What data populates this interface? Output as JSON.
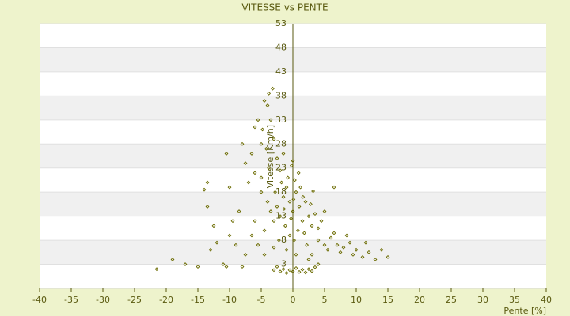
{
  "chart_data": {
    "type": "scatter",
    "title": "VITESSE vs PENTE",
    "x_label": "Pente [%]",
    "y_label": "Vitesse [Km/h]",
    "xlim": [
      -40,
      40
    ],
    "xticks": [
      -40,
      -35,
      -30,
      -25,
      -20,
      -15,
      -10,
      -5,
      0,
      5,
      10,
      15,
      20,
      25,
      30,
      35,
      40
    ],
    "ylim": [
      -2,
      53
    ],
    "yticks": [
      3,
      8,
      13,
      18,
      23,
      28,
      33,
      38,
      43,
      48,
      53
    ],
    "grid": true,
    "series": [
      {
        "color": "#6b6b00",
        "x": [
          -4.5,
          -3.8,
          -3.2,
          -4,
          -5.5,
          -6,
          -4.8,
          -3.5,
          -5,
          -6.5,
          -4.2,
          -3,
          -2.5,
          -7.5,
          -8,
          -10.5,
          -13.5,
          -14,
          -10,
          -7,
          -6,
          -5,
          -3.8,
          -2,
          -1.5,
          -21.5,
          -19,
          -17,
          -15,
          -13,
          -12,
          -11,
          -10,
          -9.5,
          -12.5,
          -13.5,
          -8.5,
          -9,
          -7.5,
          -6.5,
          -6,
          -8,
          -10.5,
          -4.5,
          -5.5,
          -2.5,
          -2,
          -1.5,
          -1,
          -0.5,
          0,
          0.5,
          1,
          1.5,
          2,
          2.5,
          3,
          -3,
          -3.5,
          -4,
          -2.8,
          -1.8,
          -0.8,
          0.3,
          1.2,
          0.8,
          -0.5,
          -1.2,
          0.2,
          1.8,
          2.2,
          -2.2,
          -1,
          0.5,
          -0.3,
          0.1,
          -1.4,
          1.6,
          2.8,
          3.5,
          4,
          4.5,
          -4.5,
          -3,
          0.9,
          -0.2,
          0,
          5,
          6.5,
          -5,
          3.2,
          4,
          5,
          5.5,
          6,
          7,
          7.5,
          8,
          9,
          9.5,
          10,
          11,
          11.5,
          12,
          13,
          14,
          15,
          8.5,
          6.5,
          3,
          2.5,
          -2,
          -1.5,
          -1,
          -0.5,
          0,
          0.5,
          1,
          1.5,
          2,
          2.5,
          3,
          3.5,
          -2.5,
          -3,
          4
        ],
        "y": [
          37,
          38.5,
          39.5,
          36,
          33,
          31.5,
          31,
          33,
          28,
          26,
          27,
          29,
          25,
          24,
          28,
          26,
          20,
          18.5,
          19,
          20,
          22,
          21,
          23,
          22.5,
          26,
          2,
          4,
          3,
          2.5,
          6,
          7.5,
          3,
          9,
          12,
          11,
          15,
          14,
          7,
          5,
          9,
          12,
          2.5,
          2.5,
          5,
          7,
          15,
          13,
          17,
          19,
          16,
          14,
          18,
          15,
          12,
          16,
          13,
          11,
          12,
          14,
          16,
          18,
          20,
          21,
          20.5,
          19,
          10,
          9,
          11,
          8,
          9.5,
          7,
          8,
          6,
          5,
          12.5,
          16.5,
          14.5,
          17,
          15.5,
          13.5,
          10.5,
          12,
          10,
          6.5,
          22,
          23.5,
          24.5,
          14,
          19,
          18,
          18.2,
          8,
          7,
          6,
          8.5,
          7,
          5.5,
          6.5,
          7.5,
          5,
          6,
          4.5,
          7.5,
          5.5,
          4,
          6,
          4.5,
          9,
          9.5,
          5,
          4,
          1.5,
          2,
          1.2,
          1.8,
          1.5,
          2.2,
          1.4,
          1.9,
          1.3,
          2,
          1.6,
          2.4,
          2.5,
          1.8,
          3
        ]
      }
    ]
  }
}
